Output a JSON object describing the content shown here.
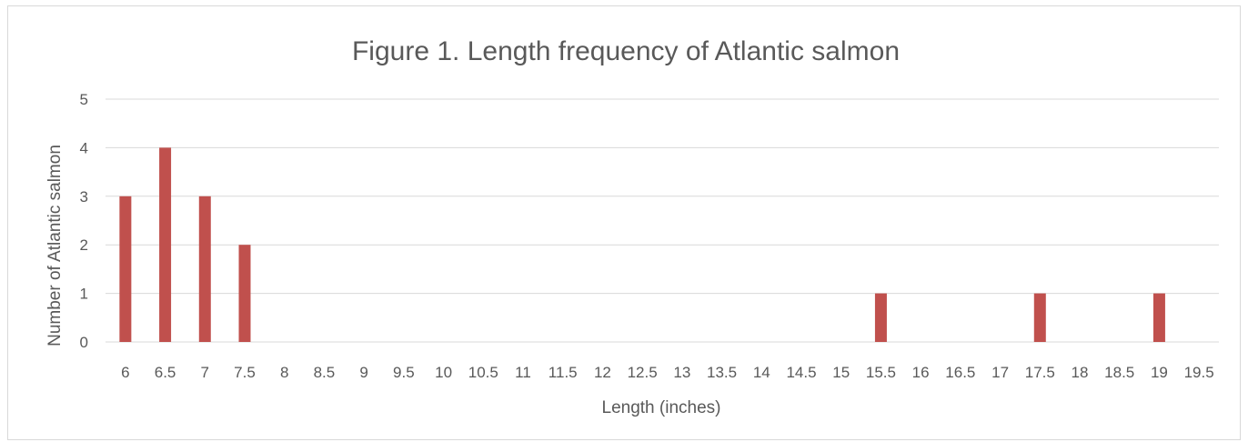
{
  "chart_data": {
    "type": "bar",
    "title": "Figure 1. Length frequency of Atlantic salmon",
    "xlabel": "Length (inches)",
    "ylabel": "Number of Atlantic salmon",
    "categories": [
      "6",
      "6.5",
      "7",
      "7.5",
      "8",
      "8.5",
      "9",
      "9.5",
      "10",
      "10.5",
      "11",
      "11.5",
      "12",
      "12.5",
      "13",
      "13.5",
      "14",
      "14.5",
      "15",
      "15.5",
      "16",
      "16.5",
      "17",
      "17.5",
      "18",
      "18.5",
      "19",
      "19.5"
    ],
    "values": [
      3,
      4,
      3,
      2,
      0,
      0,
      0,
      0,
      0,
      0,
      0,
      0,
      0,
      0,
      0,
      0,
      0,
      0,
      0,
      1,
      0,
      0,
      0,
      1,
      0,
      0,
      1,
      0
    ],
    "ylim": [
      0,
      5
    ],
    "yticks": [
      "0",
      "1",
      "2",
      "3",
      "4",
      "5"
    ],
    "grid": true,
    "legend": "none",
    "colors": {
      "bar": "#c0504d",
      "grid": "#d9d9d9",
      "text": "#595959"
    }
  }
}
